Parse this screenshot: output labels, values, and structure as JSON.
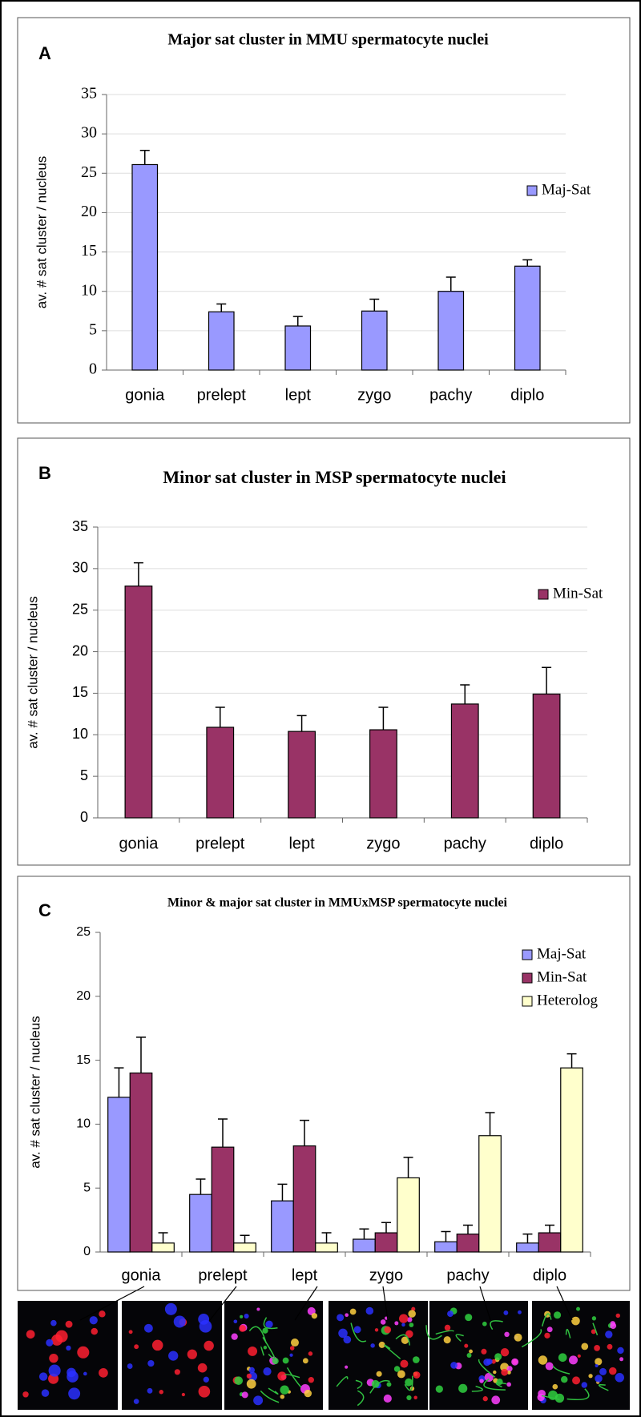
{
  "chart_data": [
    {
      "type": "bar",
      "panel": "A",
      "title": "Major sat cluster in MMU spermatocyte nuclei",
      "ylabel": "av. # sat cluster / nucleus",
      "categories": [
        "gonia",
        "prelept",
        "lept",
        "zygo",
        "pachy",
        "diplo"
      ],
      "series": [
        {
          "name": "Maj-Sat",
          "color": "#9999ff",
          "values": [
            26.1,
            7.4,
            5.6,
            7.5,
            10.0,
            13.2
          ],
          "errors": [
            1.8,
            1.0,
            1.2,
            1.5,
            1.8,
            0.8
          ]
        }
      ],
      "ylim": [
        0,
        35
      ],
      "yticks": [
        0,
        5,
        10,
        15,
        20,
        25,
        30,
        35
      ],
      "grid": true
    },
    {
      "type": "bar",
      "panel": "B",
      "title": "Minor sat cluster in MSP spermatocyte nuclei",
      "ylabel": "av. # sat cluster / nucleus",
      "categories": [
        "gonia",
        "prelept",
        "lept",
        "zygo",
        "pachy",
        "diplo"
      ],
      "series": [
        {
          "name": "Min-Sat",
          "color": "#993366",
          "values": [
            27.9,
            10.9,
            10.4,
            10.6,
            13.7,
            14.9
          ],
          "errors": [
            2.8,
            2.4,
            1.9,
            2.7,
            2.3,
            3.2
          ]
        }
      ],
      "ylim": [
        0,
        35
      ],
      "yticks": [
        0,
        5,
        10,
        15,
        20,
        25,
        30,
        35
      ],
      "grid": true
    },
    {
      "type": "bar",
      "panel": "C",
      "title": "Minor & major sat cluster in MMUxMSP spermatocyte nuclei",
      "ylabel": "av. # sat cluster / nucleus",
      "categories": [
        "gonia",
        "prelept",
        "lept",
        "zygo",
        "pachy",
        "diplo"
      ],
      "series": [
        {
          "name": "Maj-Sat",
          "color": "#9999ff",
          "values": [
            12.1,
            4.5,
            4.0,
            1.0,
            0.8,
            0.7
          ],
          "errors": [
            2.3,
            1.2,
            1.3,
            0.8,
            0.8,
            0.7
          ]
        },
        {
          "name": "Min-Sat",
          "color": "#993366",
          "values": [
            14.0,
            8.2,
            8.3,
            1.5,
            1.4,
            1.5
          ],
          "errors": [
            2.8,
            2.2,
            2.0,
            0.8,
            0.7,
            0.6
          ]
        },
        {
          "name": "Heterolog",
          "color": "#ffffcc",
          "values": [
            0.7,
            0.7,
            0.7,
            5.8,
            9.1,
            14.4
          ],
          "errors": [
            0.8,
            0.6,
            0.8,
            1.6,
            1.8,
            1.1
          ]
        }
      ],
      "ylim": [
        0,
        25
      ],
      "yticks": [
        0,
        5,
        10,
        15,
        20,
        25
      ],
      "grid": false
    }
  ]
}
